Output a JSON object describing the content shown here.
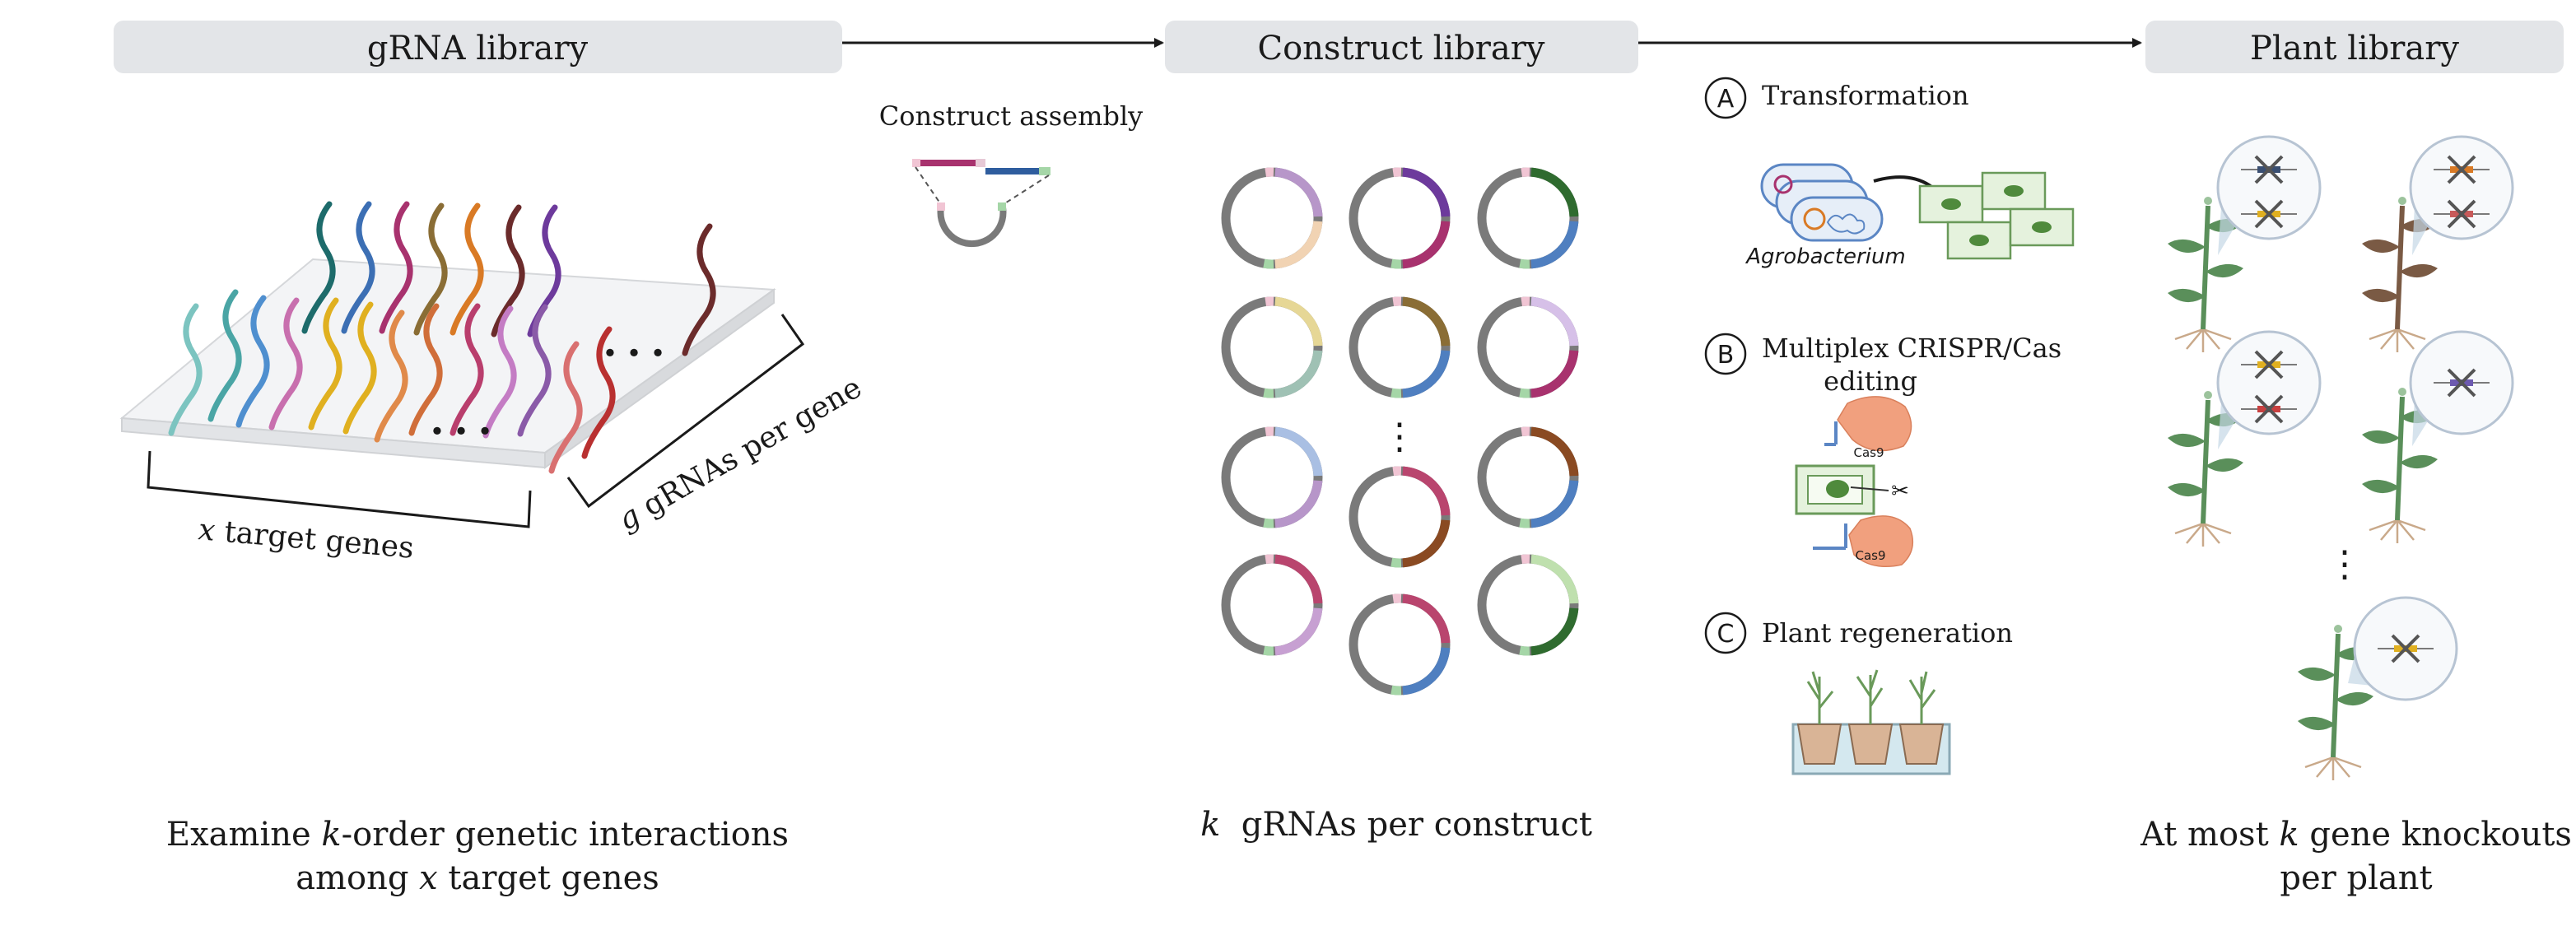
{
  "headers": {
    "grna_library": "gRNA library",
    "construct_library": "Construct library",
    "plant_library": "Plant library"
  },
  "construct_assembly_label": "Construct assembly",
  "grna_plate": {
    "x_var": "x",
    "x_axis_rest": " target genes",
    "g_var": "g",
    "g_axis_rest": " gRNAs per gene",
    "ellipsis": "• • •"
  },
  "captions": {
    "left_line1_pre": "Examine ",
    "left_line1_var": "k",
    "left_line1_post": "-order genetic interactions",
    "left_line2_pre": "among ",
    "left_line2_var": "x",
    "left_line2_post": " target genes",
    "middle_var": "k",
    "middle_post": "  gRNAs per construct",
    "right_line1_pre": "At most ",
    "right_line1_var": "k",
    "right_line1_post": " gene knockouts",
    "right_line2": "per plant"
  },
  "steps": [
    {
      "letter": "A",
      "title": "Transformation",
      "sublabel": "Agrobacterium"
    },
    {
      "letter": "B",
      "title_line1": "Multiplex CRISPR/Cas",
      "title_line2": "editing",
      "protein_label": "Cas9"
    },
    {
      "letter": "C",
      "title": "Plant regeneration"
    }
  ],
  "vertical_ellipsis": "⋮",
  "colors": {
    "header_bg": "#e3e5e8",
    "plasmid_backbone": "#7a7a7a",
    "teal": "#1d6b6b",
    "blue": "#3c6fb4",
    "magenta": "#a8326e",
    "orange": "#d97a25",
    "purple": "#6d3a9c",
    "brown": "#6b2b2b",
    "plant_green": "#5a8f5a",
    "cas9": "#f1a07e"
  },
  "icons": [
    "right-arrow-icon",
    "plasmid-icon",
    "agrobacterium-icon",
    "plant-cell-icon",
    "cas9-icon",
    "scissors-icon",
    "plant-icon",
    "knockout-cross-icon",
    "pot-tray-icon"
  ]
}
